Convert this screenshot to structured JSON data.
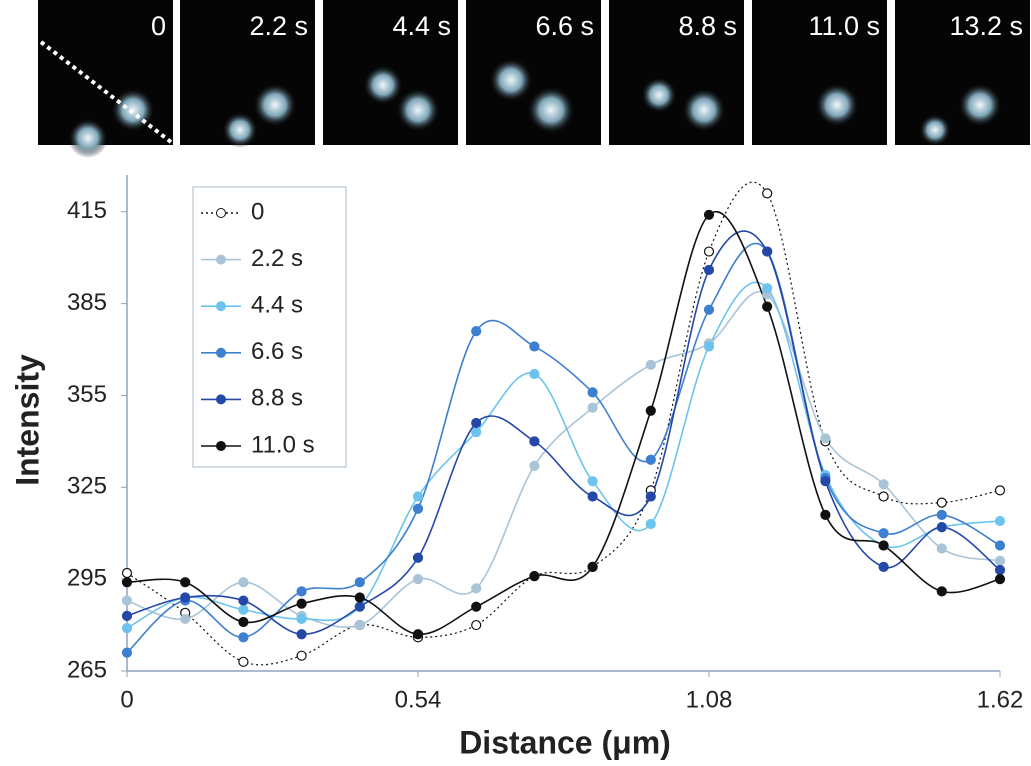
{
  "image_strip": {
    "labels": [
      "0",
      "2.2 s",
      "4.4 s",
      "6.6 s",
      "8.8 s",
      "11.0 s",
      "13.2 s"
    ]
  },
  "chart_data": {
    "type": "line",
    "x_label": "Distance (μm)",
    "y_label": "Intensity",
    "x": [
      0,
      0.108,
      0.216,
      0.324,
      0.432,
      0.54,
      0.648,
      0.756,
      0.864,
      0.972,
      1.08,
      1.188,
      1.296,
      1.404,
      1.512,
      1.62
    ],
    "xlim": [
      0,
      1.62
    ],
    "xticks": [
      0,
      0.54,
      1.08,
      1.62
    ],
    "ylim": [
      265,
      427
    ],
    "yticks": [
      265,
      295,
      325,
      355,
      385,
      415
    ],
    "legend": "upper left",
    "series": [
      {
        "name": "0",
        "color": "#111111",
        "marker": "open",
        "dashed": true,
        "values": [
          297,
          284,
          268,
          270,
          280,
          276,
          280,
          296,
          299,
          324,
          402,
          421,
          340,
          322,
          320,
          324
        ]
      },
      {
        "name": "2.2 s",
        "color": "#a9c4d6",
        "marker": "filled",
        "dashed": false,
        "values": [
          288,
          282,
          294,
          283,
          280,
          295,
          292,
          332,
          351,
          365,
          372,
          388,
          341,
          326,
          305,
          301
        ]
      },
      {
        "name": "4.4 s",
        "color": "#6cc4ee",
        "marker": "filled",
        "dashed": false,
        "values": [
          279,
          289,
          285,
          282,
          286,
          322,
          343,
          362,
          327,
          313,
          371,
          390,
          329,
          306,
          312,
          314
        ]
      },
      {
        "name": "6.6 s",
        "color": "#3d7fd0",
        "marker": "filled",
        "dashed": false,
        "values": [
          271,
          288,
          276,
          291,
          294,
          318,
          376,
          371,
          356,
          334,
          383,
          402,
          328,
          310,
          316,
          306
        ]
      },
      {
        "name": "8.8 s",
        "color": "#2548a8",
        "marker": "filled",
        "dashed": false,
        "values": [
          283,
          289,
          288,
          277,
          286,
          302,
          346,
          340,
          322,
          322,
          396,
          402,
          327,
          299,
          312,
          298
        ]
      },
      {
        "name": "11.0 s",
        "color": "#111111",
        "marker": "filled",
        "dashed": false,
        "values": [
          294,
          294,
          281,
          287,
          289,
          277,
          286,
          296,
          299,
          350,
          414,
          384,
          316,
          306,
          291,
          295
        ]
      }
    ]
  }
}
